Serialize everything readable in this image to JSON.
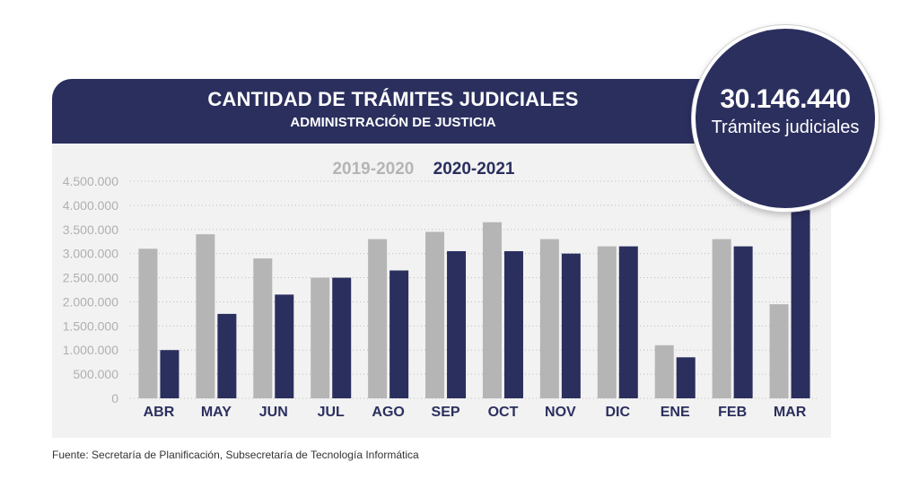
{
  "header": {
    "title": "CANTIDAD DE TRÁMITES JUDICIALES",
    "subtitle": "ADMINISTRACIÓN DE JUSTICIA"
  },
  "badge": {
    "number": "30.146.440",
    "label": "Trámites judiciales"
  },
  "source": "Fuente: Secretaría de Planificación, Subsecretaría de Tecnología Informática",
  "colors": {
    "primary": "#2b2f5e",
    "secondary": "#b5b5b5",
    "panel": "#f2f2f2"
  },
  "chart_data": {
    "type": "bar",
    "categories": [
      "ABR",
      "MAY",
      "JUN",
      "JUL",
      "AGO",
      "SEP",
      "OCT",
      "NOV",
      "DIC",
      "ENE",
      "FEB",
      "MAR"
    ],
    "series": [
      {
        "name": "2019-2020",
        "color": "#b5b5b5",
        "values": [
          3100000,
          3400000,
          2900000,
          2500000,
          3300000,
          3450000,
          3650000,
          3300000,
          3150000,
          1100000,
          3300000,
          1950000
        ]
      },
      {
        "name": "2020-2021",
        "color": "#2b2f5e",
        "values": [
          1000000,
          1750000,
          2150000,
          2500000,
          2650000,
          3050000,
          3050000,
          3000000,
          3150000,
          850000,
          3150000,
          3900000
        ]
      }
    ],
    "y_ticks": [
      "4.500.000",
      "4.000.000",
      "3.500.000",
      "3.000.000",
      "2.500.000",
      "2.000.000",
      "1.500.000",
      "1.000.000",
      "500.000",
      "0"
    ],
    "ylim": [
      0,
      4500000
    ],
    "grid": true,
    "legend_position": "top-center"
  }
}
